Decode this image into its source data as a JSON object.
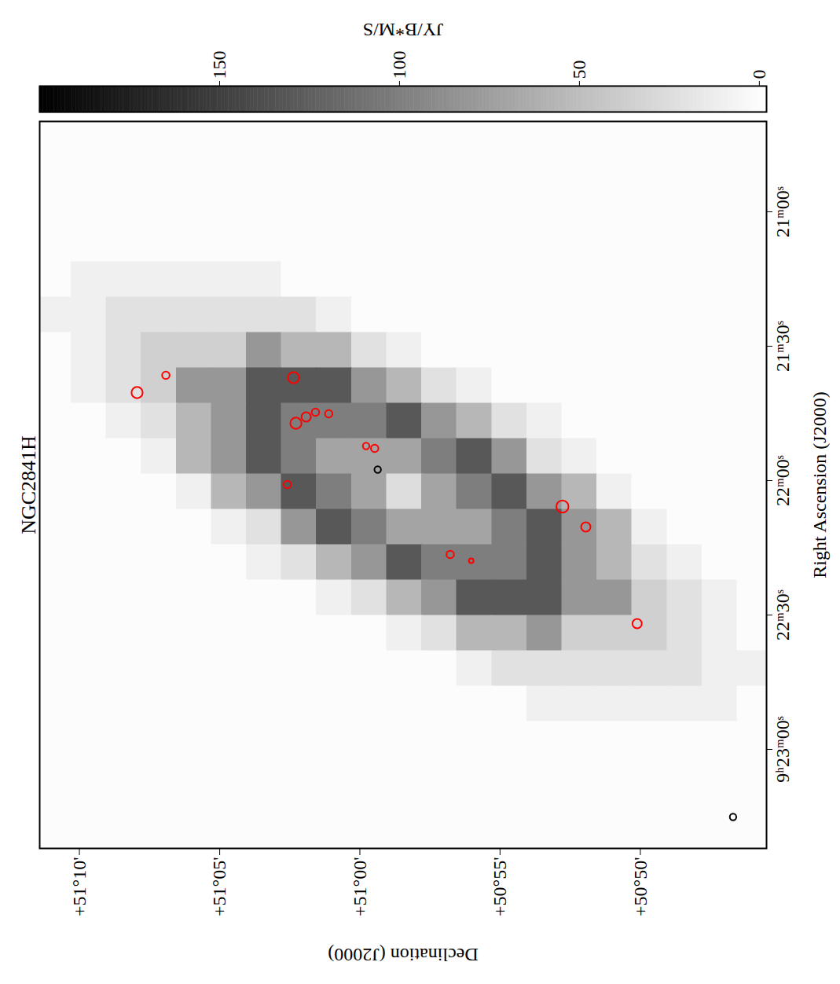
{
  "chart_data": {
    "type": "image",
    "title": "NGC2841H",
    "x_label": "Right Ascension (J2000)",
    "y_label": "Declination (J2000)",
    "xlim": [
      23.3684,
      20.6637
    ],
    "ylim": [
      50.7583,
      51.1903
    ],
    "xticks": [
      {
        "value": 23,
        "label": "9ʰ23ᵐ00ˢ"
      },
      {
        "value": 22.5,
        "label": "22ᵐ30ˢ"
      },
      {
        "value": 22,
        "label": "22ᵐ00ˢ"
      },
      {
        "value": 21.5,
        "label": "21ᵐ30ˢ"
      },
      {
        "value": 21,
        "label": "21ᵐ00ˢ"
      }
    ],
    "yticks": [
      {
        "value": 50.8333,
        "label": "+50°50'"
      },
      {
        "value": 50.9167,
        "label": "+50°55'"
      },
      {
        "value": 51,
        "label": "+51°00'"
      },
      {
        "value": 51.0833,
        "label": "+51°05'"
      },
      {
        "value": 51.1667,
        "label": "+51°10'"
      }
    ],
    "image": {
      "ra": [
        20.72222,
        20.8538,
        20.98538,
        21.11696,
        21.24854,
        21.38012,
        21.5117,
        21.64327,
        21.77485,
        21.90643,
        22.03801,
        22.16959,
        22.30117,
        22.43275,
        22.56433,
        22.69591,
        22.82749,
        22.95906,
        23.09064,
        23.22222,
        23.3538
      ],
      "dec": [
        51.18194,
        51.16111,
        51.14028,
        51.11944,
        51.09861,
        51.07778,
        51.05694,
        51.03611,
        51.01528,
        50.99444,
        50.97361,
        50.95278,
        50.93194,
        50.91111,
        50.89028,
        50.86944,
        50.84861,
        50.82778,
        50.80694,
        50.78611,
        50.76528
      ],
      "values": [
        [
          0,
          0,
          0,
          0,
          0,
          0,
          0,
          0,
          0,
          0,
          0,
          0,
          0,
          0,
          0,
          0,
          0,
          0,
          0,
          0,
          0
        ],
        [
          0,
          0,
          0,
          0,
          0,
          0,
          0,
          0,
          0,
          0,
          0,
          0,
          0,
          0,
          0,
          0,
          0,
          0,
          0,
          0,
          0
        ],
        [
          0,
          0,
          0,
          0,
          0,
          0,
          0,
          0,
          0,
          0,
          0,
          0,
          0,
          0,
          0,
          0,
          0,
          0,
          0,
          0,
          0
        ],
        [
          0,
          0,
          0,
          0,
          0,
          0,
          0,
          0,
          0,
          0,
          0,
          0,
          0,
          0,
          0,
          0,
          0,
          0,
          0,
          0,
          0
        ],
        [
          0,
          10,
          10,
          10,
          10,
          10,
          10,
          0,
          0,
          0,
          0,
          0,
          0,
          0,
          0,
          0,
          0,
          0,
          0,
          0,
          0
        ],
        [
          10,
          10,
          22,
          22,
          22,
          22,
          22,
          22,
          10,
          0,
          0,
          0,
          0,
          0,
          0,
          0,
          0,
          0,
          0,
          0,
          0
        ],
        [
          0,
          10,
          22,
          35,
          35,
          35,
          80,
          55,
          55,
          22,
          10,
          0,
          0,
          0,
          0,
          0,
          0,
          0,
          0,
          0,
          0
        ],
        [
          0,
          10,
          22,
          35,
          80,
          80,
          130,
          130,
          130,
          80,
          55,
          22,
          10,
          0,
          0,
          0,
          0,
          0,
          0,
          0,
          0
        ],
        [
          0,
          0,
          10,
          22,
          55,
          80,
          130,
          100,
          100,
          100,
          130,
          80,
          55,
          22,
          10,
          0,
          0,
          0,
          0,
          0,
          0
        ],
        [
          0,
          0,
          0,
          10,
          55,
          80,
          130,
          100,
          70,
          70,
          70,
          100,
          130,
          80,
          22,
          10,
          0,
          0,
          0,
          0,
          0
        ],
        [
          0,
          0,
          0,
          0,
          10,
          55,
          80,
          130,
          100,
          70,
          25,
          70,
          100,
          130,
          80,
          55,
          10,
          0,
          0,
          0,
          0
        ],
        [
          0,
          0,
          0,
          0,
          0,
          10,
          22,
          80,
          130,
          100,
          70,
          70,
          70,
          100,
          130,
          80,
          55,
          10,
          0,
          0,
          0
        ],
        [
          0,
          0,
          0,
          0,
          0,
          0,
          10,
          22,
          55,
          80,
          130,
          100,
          100,
          100,
          130,
          80,
          55,
          22,
          10,
          0,
          0
        ],
        [
          0,
          0,
          0,
          0,
          0,
          0,
          0,
          0,
          10,
          22,
          55,
          80,
          130,
          130,
          130,
          80,
          80,
          35,
          22,
          10,
          0
        ],
        [
          0,
          0,
          0,
          0,
          0,
          0,
          0,
          0,
          0,
          0,
          10,
          22,
          55,
          55,
          80,
          35,
          35,
          35,
          22,
          10,
          0
        ],
        [
          0,
          0,
          0,
          0,
          0,
          0,
          0,
          0,
          0,
          0,
          0,
          0,
          10,
          22,
          22,
          22,
          22,
          22,
          22,
          10,
          10
        ],
        [
          0,
          0,
          0,
          0,
          0,
          0,
          0,
          0,
          0,
          0,
          0,
          0,
          0,
          0,
          10,
          10,
          10,
          10,
          10,
          10,
          0
        ],
        [
          0,
          0,
          0,
          0,
          0,
          0,
          0,
          0,
          0,
          0,
          0,
          0,
          0,
          0,
          0,
          0,
          0,
          0,
          0,
          0,
          0
        ],
        [
          0,
          0,
          0,
          0,
          0,
          0,
          0,
          0,
          0,
          0,
          0,
          0,
          0,
          0,
          0,
          0,
          0,
          0,
          0,
          0,
          0
        ],
        [
          0,
          0,
          0,
          0,
          0,
          0,
          0,
          0,
          0,
          0,
          0,
          0,
          0,
          0,
          0,
          0,
          0,
          0,
          0,
          0,
          0
        ],
        [
          0,
          0,
          0,
          0,
          0,
          0,
          0,
          0,
          0,
          0,
          0,
          0,
          0,
          0,
          0,
          0,
          0,
          0,
          0,
          0,
          0
        ]
      ]
    },
    "colorbar": {
      "label": "JY/B*M/S",
      "range": [
        -2,
        200
      ],
      "ticks": [
        0,
        50,
        100,
        150
      ]
    },
    "sources": {
      "marker": "ellipse",
      "ra": [
        21.6725,
        21.6082,
        21.617,
        21.7865,
        21.7632,
        21.7456,
        21.7515,
        22.0146,
        21.8713,
        21.8801,
        21.9591,
        22.2749,
        22.2982,
        22.0965,
        22.1725,
        22.5322,
        23.2515
      ],
      "dec": [
        51.1324,
        51.1153,
        51.0394,
        51.038,
        51.0319,
        51.0264,
        51.0185,
        51.0431,
        50.9963,
        50.9912,
        50.9894,
        50.9463,
        50.9338,
        50.8796,
        50.8657,
        50.8352,
        50.7782
      ],
      "size": [
        12,
        8,
        12,
        12,
        10,
        8,
        8,
        8,
        7,
        8,
        7,
        8,
        5,
        13,
        10,
        10,
        7
      ],
      "colors": [
        "red",
        "red",
        "red",
        "red",
        "red",
        "red",
        "red",
        "red",
        "red",
        "red",
        "black",
        "red",
        "red",
        "red",
        "red",
        "red",
        "black"
      ]
    }
  }
}
